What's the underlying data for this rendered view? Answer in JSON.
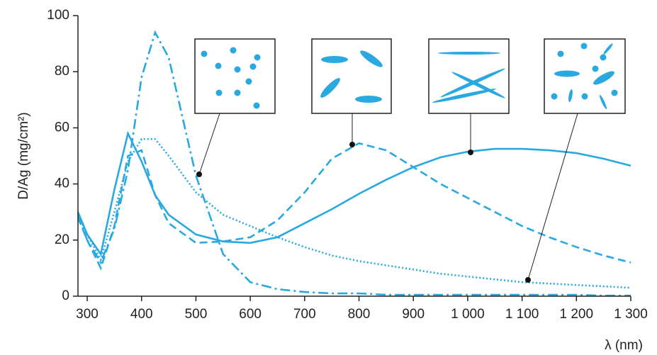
{
  "chart_data": {
    "type": "line",
    "y_label": "D/Ag (mg/cm²)",
    "x_label": "λ (nm)",
    "x": [
      283,
      300,
      325,
      350,
      375,
      400,
      425,
      450,
      500,
      550,
      600,
      650,
      700,
      750,
      800,
      850,
      900,
      950,
      1000,
      1050,
      1100,
      1150,
      1200,
      1250,
      1300
    ],
    "series": [
      {
        "color": "#29a9e0",
        "style": "solid",
        "values": [
          30,
          22,
          15,
          38,
          58,
          48,
          36,
          29,
          22,
          19.5,
          19,
          21,
          26,
          31,
          36.5,
          41.5,
          46,
          49.5,
          51.5,
          52.5,
          52.5,
          52,
          51,
          49,
          46.5
        ]
      },
      {
        "color": "#29a9e0",
        "style": "dashed",
        "values": [
          28,
          20,
          10,
          25,
          50,
          52,
          36,
          26,
          19,
          19.5,
          21,
          27,
          37,
          49,
          54.5,
          52,
          46,
          40,
          35,
          30,
          25,
          21,
          17.5,
          14.5,
          12
        ]
      },
      {
        "color": "#29a9e0",
        "style": "dotted",
        "values": [
          29,
          22,
          13,
          30,
          48,
          56,
          56,
          50,
          37,
          29,
          25,
          21,
          17.5,
          14.5,
          12.5,
          11,
          9.5,
          8,
          7,
          6,
          5,
          4.5,
          4,
          3.5,
          3
        ]
      },
      {
        "color": "#29a9e0",
        "style": "dashdot",
        "values": [
          29,
          20,
          12,
          24,
          45,
          78,
          94,
          85,
          43,
          15,
          5,
          2.5,
          1.5,
          1,
          1,
          0.5,
          0.5,
          0.5,
          0.5,
          0.5,
          0.5,
          0.5,
          0.5,
          0.2,
          0.2
        ]
      }
    ],
    "xlim": [
      283,
      1300
    ],
    "ylim": [
      0,
      100
    ],
    "xticks": [
      300,
      400,
      500,
      600,
      700,
      800,
      900,
      {
        "value": 1000,
        "label": "1 000"
      },
      {
        "value": 1100,
        "label": "1 100"
      },
      {
        "value": 1200,
        "label": "1 200"
      },
      {
        "value": 1300,
        "label": "1 300"
      }
    ],
    "yticks": [
      0,
      20,
      40,
      60,
      80,
      100
    ],
    "grid": false
  }
}
